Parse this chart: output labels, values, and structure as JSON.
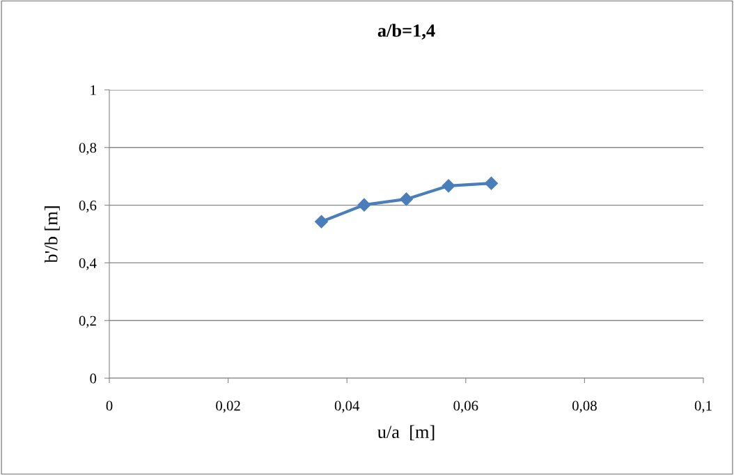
{
  "chart_data": {
    "type": "line",
    "title": "a/b=1,4",
    "xlabel": "u/a  [m]",
    "ylabel": "b'/b [m]",
    "x": [
      0.0357,
      0.0429,
      0.05,
      0.0571,
      0.0643
    ],
    "series": [
      {
        "color": "#4a7ebb",
        "values": [
          0.543,
          0.601,
          0.621,
          0.667,
          0.676
        ]
      }
    ],
    "xlim": [
      0,
      0.1
    ],
    "xticks": [
      0,
      {
        "value": 0.02,
        "label": "0,02"
      },
      {
        "value": 0.04,
        "label": "0,04"
      },
      {
        "value": 0.06,
        "label": "0,06"
      },
      {
        "value": 0.08,
        "label": "0,08"
      },
      {
        "value": 0.1,
        "label": "0,1"
      }
    ],
    "ylim": [
      0,
      1
    ],
    "yticks": [
      0,
      {
        "value": 0.2,
        "label": "0,2"
      },
      {
        "value": 0.4,
        "label": "0,4"
      },
      {
        "value": 0.6,
        "label": "0,6"
      },
      {
        "value": 0.8,
        "label": "0,8"
      },
      1
    ],
    "grid": "y",
    "marker": "diamond",
    "line_style": "solid"
  }
}
